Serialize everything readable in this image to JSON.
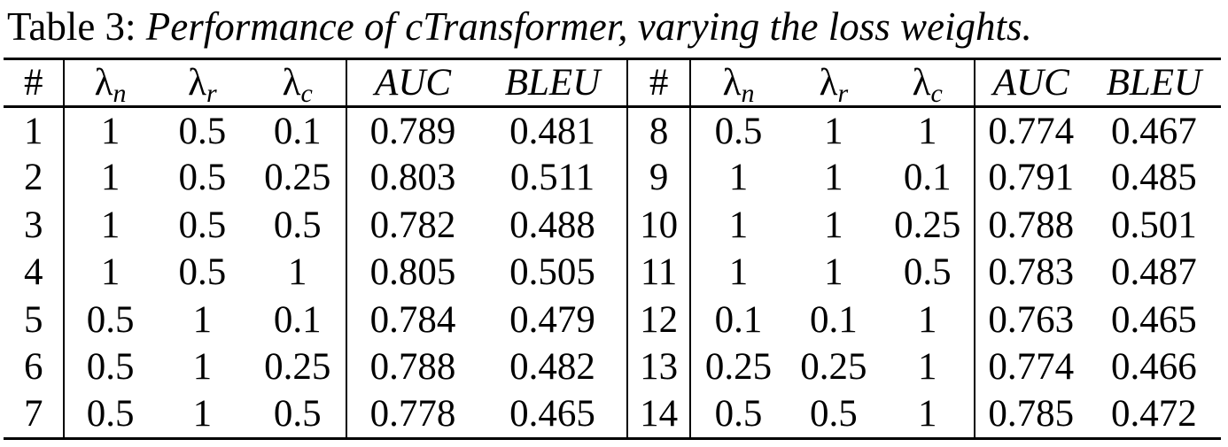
{
  "caption": {
    "label": "Table 3:",
    "title": "Performance of cTransformer, varying the loss weights."
  },
  "headers": {
    "num": "#",
    "lambda_n": {
      "symbol": "λ",
      "sub": "n"
    },
    "lambda_r": {
      "symbol": "λ",
      "sub": "r"
    },
    "lambda_c": {
      "symbol": "λ",
      "sub": "c"
    },
    "auc": "AUC",
    "bleu": "BLEU"
  },
  "rows": [
    {
      "left": {
        "num": "1",
        "ln": "1",
        "lr": "0.5",
        "lc": "0.1",
        "auc": "0.789",
        "bleu": "0.481"
      },
      "right": {
        "num": "8",
        "ln": "0.5",
        "lr": "1",
        "lc": "1",
        "auc": "0.774",
        "bleu": "0.467"
      }
    },
    {
      "left": {
        "num": "2",
        "ln": "1",
        "lr": "0.5",
        "lc": "0.25",
        "auc": "0.803",
        "bleu": "0.511"
      },
      "right": {
        "num": "9",
        "ln": "1",
        "lr": "1",
        "lc": "0.1",
        "auc": "0.791",
        "bleu": "0.485"
      }
    },
    {
      "left": {
        "num": "3",
        "ln": "1",
        "lr": "0.5",
        "lc": "0.5",
        "auc": "0.782",
        "bleu": "0.488"
      },
      "right": {
        "num": "10",
        "ln": "1",
        "lr": "1",
        "lc": "0.25",
        "auc": "0.788",
        "bleu": "0.501"
      }
    },
    {
      "left": {
        "num": "4",
        "ln": "1",
        "lr": "0.5",
        "lc": "1",
        "auc": "0.805",
        "bleu": "0.505"
      },
      "right": {
        "num": "11",
        "ln": "1",
        "lr": "1",
        "lc": "0.5",
        "auc": "0.783",
        "bleu": "0.487"
      }
    },
    {
      "left": {
        "num": "5",
        "ln": "0.5",
        "lr": "1",
        "lc": "0.1",
        "auc": "0.784",
        "bleu": "0.479"
      },
      "right": {
        "num": "12",
        "ln": "0.1",
        "lr": "0.1",
        "lc": "1",
        "auc": "0.763",
        "bleu": "0.465"
      }
    },
    {
      "left": {
        "num": "6",
        "ln": "0.5",
        "lr": "1",
        "lc": "0.25",
        "auc": "0.788",
        "bleu": "0.482"
      },
      "right": {
        "num": "13",
        "ln": "0.25",
        "lr": "0.25",
        "lc": "1",
        "auc": "0.774",
        "bleu": "0.466"
      }
    },
    {
      "left": {
        "num": "7",
        "ln": "0.5",
        "lr": "1",
        "lc": "0.5",
        "auc": "0.778",
        "bleu": "0.465"
      },
      "right": {
        "num": "14",
        "ln": "0.5",
        "lr": "0.5",
        "lc": "1",
        "auc": "0.785",
        "bleu": "0.472"
      }
    }
  ],
  "bold_values": [
    "0.511",
    "0.805"
  ]
}
